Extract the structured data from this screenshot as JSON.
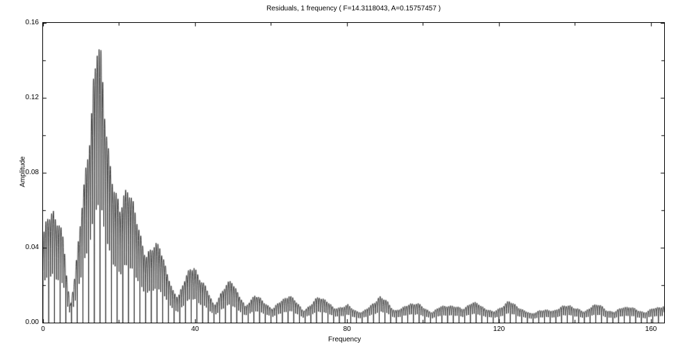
{
  "chart_data": {
    "type": "line",
    "title": "Residuals, 1 frequency ( F=14.3118043, A=0.15757457 )",
    "xlabel": "Frequency",
    "ylabel": "Amplitude",
    "xlim": [
      0,
      163.5
    ],
    "ylim": [
      0,
      0.16
    ],
    "x_major_ticks": [
      0,
      40,
      80,
      120,
      160
    ],
    "x_minor_ticks": [
      20,
      60,
      100,
      140
    ],
    "x_tick_labels": [
      "0",
      "40",
      "80",
      "120",
      "160"
    ],
    "y_major_ticks": [
      0,
      0.04,
      0.08,
      0.12,
      0.16
    ],
    "y_minor_ticks": [
      0.02,
      0.06,
      0.1,
      0.14
    ],
    "y_tick_labels": [
      "0.00",
      "0.04",
      "0.08",
      "0.12",
      "0.16"
    ],
    "grid": false,
    "legend": null,
    "line_color": "#000000",
    "background_color": "#ffffff",
    "peak": {
      "frequency": 14.3118043,
      "amplitude": 0.15757457
    },
    "fine_structure_period": 0.5,
    "envelope": [
      [
        0,
        0.048
      ],
      [
        1.2,
        0.058
      ],
      [
        2.6,
        0.064
      ],
      [
        4,
        0.059
      ],
      [
        5.5,
        0.045
      ],
      [
        6.4,
        0.022
      ],
      [
        7.2,
        0.01
      ],
      [
        8.5,
        0.03
      ],
      [
        10,
        0.06
      ],
      [
        11.5,
        0.09
      ],
      [
        12.5,
        0.115
      ],
      [
        13.3,
        0.14
      ],
      [
        14.3,
        0.157
      ],
      [
        15.3,
        0.145
      ],
      [
        16.3,
        0.12
      ],
      [
        17.5,
        0.095
      ],
      [
        19,
        0.072
      ],
      [
        20.3,
        0.063
      ],
      [
        21.5,
        0.075
      ],
      [
        22.4,
        0.08
      ],
      [
        23.5,
        0.068
      ],
      [
        25.5,
        0.05
      ],
      [
        27.2,
        0.039
      ],
      [
        29,
        0.042
      ],
      [
        30.8,
        0.045
      ],
      [
        32.5,
        0.03
      ],
      [
        34,
        0.018
      ],
      [
        35.5,
        0.015
      ],
      [
        37.5,
        0.026
      ],
      [
        39.8,
        0.032
      ],
      [
        41.5,
        0.025
      ],
      [
        43.5,
        0.017
      ],
      [
        45,
        0.01
      ],
      [
        47,
        0.017
      ],
      [
        49.6,
        0.025
      ],
      [
        51.5,
        0.016
      ],
      [
        53.2,
        0.009
      ],
      [
        55.7,
        0.016
      ],
      [
        58.5,
        0.011
      ],
      [
        60.5,
        0.008
      ],
      [
        62.5,
        0.012
      ],
      [
        64.8,
        0.016
      ],
      [
        66.5,
        0.012
      ],
      [
        68.5,
        0.007
      ],
      [
        70.5,
        0.01
      ],
      [
        72.6,
        0.015
      ],
      [
        74.5,
        0.013
      ],
      [
        76.5,
        0.008
      ],
      [
        78.5,
        0.009
      ],
      [
        80.2,
        0.01
      ],
      [
        82,
        0.007
      ],
      [
        84,
        0.006
      ],
      [
        86,
        0.009
      ],
      [
        88.6,
        0.015
      ],
      [
        90.5,
        0.012
      ],
      [
        92.5,
        0.007
      ],
      [
        94.5,
        0.008
      ],
      [
        96.6,
        0.011
      ],
      [
        98.5,
        0.011
      ],
      [
        100.5,
        0.008
      ],
      [
        102.5,
        0.006
      ],
      [
        104.6,
        0.009
      ],
      [
        106.5,
        0.01
      ],
      [
        108.5,
        0.009
      ],
      [
        110.5,
        0.008
      ],
      [
        112.6,
        0.011
      ],
      [
        114.5,
        0.011
      ],
      [
        116.5,
        0.008
      ],
      [
        118.5,
        0.006
      ],
      [
        120.6,
        0.009
      ],
      [
        122.6,
        0.012
      ],
      [
        124.5,
        0.01
      ],
      [
        126.5,
        0.007
      ],
      [
        128.5,
        0.005
      ],
      [
        130.6,
        0.007
      ],
      [
        132.5,
        0.007
      ],
      [
        134.5,
        0.007
      ],
      [
        136.6,
        0.009
      ],
      [
        138.6,
        0.01
      ],
      [
        140.5,
        0.008
      ],
      [
        142.5,
        0.006
      ],
      [
        144.6,
        0.01
      ],
      [
        146.5,
        0.01
      ],
      [
        148.5,
        0.007
      ],
      [
        150.5,
        0.006
      ],
      [
        152.6,
        0.009
      ],
      [
        154.5,
        0.009
      ],
      [
        156.5,
        0.007
      ],
      [
        158.5,
        0.006
      ],
      [
        160.6,
        0.008
      ],
      [
        162.5,
        0.009
      ],
      [
        163.5,
        0.01
      ]
    ]
  }
}
